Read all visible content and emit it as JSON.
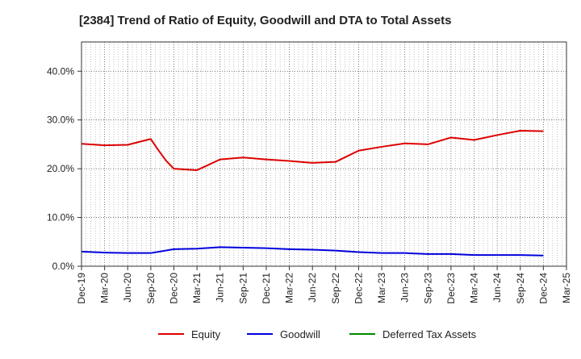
{
  "chart_data": {
    "type": "line",
    "title": "[2384]  Trend of Ratio of Equity, Goodwill and DTA to Total Assets",
    "xlabel": "",
    "ylabel": "",
    "ylim": [
      0,
      46
    ],
    "y_ticks": [
      0,
      10,
      20,
      30,
      40
    ],
    "y_tick_labels": [
      "0.0%",
      "10.0%",
      "20.0%",
      "30.0%",
      "40.0%"
    ],
    "x_tick_labels": [
      "Dec-19",
      "Mar-20",
      "Jun-20",
      "Sep-20",
      "Dec-20",
      "Mar-21",
      "Jun-21",
      "Sep-21",
      "Dec-21",
      "Mar-22",
      "Jun-22",
      "Sep-22",
      "Dec-22",
      "Mar-23",
      "Jun-23",
      "Sep-23",
      "Dec-23",
      "Mar-24",
      "Jun-24",
      "Sep-24",
      "Dec-24",
      "Mar-25"
    ],
    "grid": true,
    "legend_position": "bottom",
    "series": [
      {
        "name": "Equity",
        "color": "#dd0000",
        "points": [
          [
            0,
            25.1
          ],
          [
            1,
            24.8
          ],
          [
            2,
            24.9
          ],
          [
            3,
            26.1
          ],
          [
            3.33,
            23.8
          ],
          [
            3.67,
            21.6
          ],
          [
            4,
            20.0
          ],
          [
            5,
            19.7
          ],
          [
            6,
            21.9
          ],
          [
            7,
            22.3
          ],
          [
            8,
            21.9
          ],
          [
            9,
            21.6
          ],
          [
            10,
            21.2
          ],
          [
            11,
            21.4
          ],
          [
            12,
            23.7
          ],
          [
            13,
            24.5
          ],
          [
            14,
            25.2
          ],
          [
            15,
            25.0
          ],
          [
            16,
            26.4
          ],
          [
            17,
            25.9
          ],
          [
            18,
            26.9
          ],
          [
            19,
            27.8
          ],
          [
            20,
            27.7
          ]
        ]
      },
      {
        "name": "Goodwill",
        "color": "#0000dd",
        "points": [
          [
            0,
            3.0
          ],
          [
            1,
            2.8
          ],
          [
            2,
            2.7
          ],
          [
            3,
            2.7
          ],
          [
            4,
            3.5
          ],
          [
            5,
            3.6
          ],
          [
            6,
            3.9
          ],
          [
            7,
            3.8
          ],
          [
            8,
            3.7
          ],
          [
            9,
            3.5
          ],
          [
            10,
            3.4
          ],
          [
            11,
            3.2
          ],
          [
            12,
            2.9
          ],
          [
            13,
            2.7
          ],
          [
            14,
            2.7
          ],
          [
            15,
            2.5
          ],
          [
            16,
            2.5
          ],
          [
            17,
            2.3
          ],
          [
            18,
            2.3
          ],
          [
            19,
            2.3
          ],
          [
            20,
            2.2
          ]
        ]
      },
      {
        "name": "Deferred Tax Assets",
        "color": "#008800",
        "points": []
      }
    ]
  }
}
